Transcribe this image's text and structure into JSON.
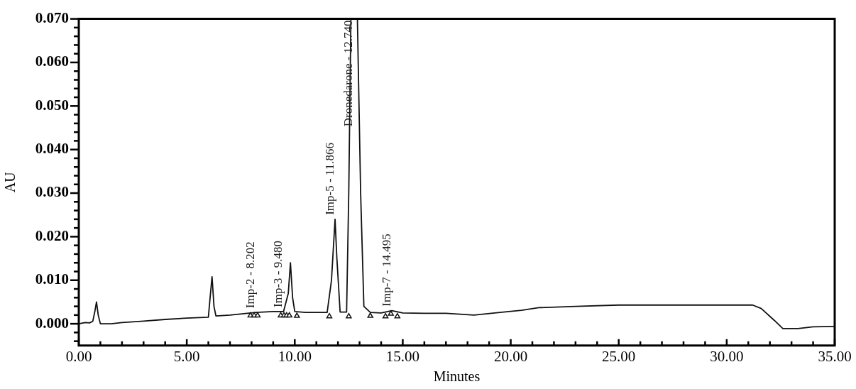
{
  "chart_data": {
    "type": "line",
    "xlabel": "Minutes",
    "ylabel": "AU",
    "xlim": [
      0,
      35
    ],
    "ylim": [
      -0.005,
      0.07
    ],
    "grid": false,
    "legend": false,
    "xticks": [
      {
        "value": 0,
        "label": "0.00"
      },
      {
        "value": 1,
        "label": null
      },
      {
        "value": 2,
        "label": null
      },
      {
        "value": 3,
        "label": null
      },
      {
        "value": 4,
        "label": null
      },
      {
        "value": 5,
        "label": "5.00"
      },
      {
        "value": 6,
        "label": null
      },
      {
        "value": 7,
        "label": null
      },
      {
        "value": 8,
        "label": null
      },
      {
        "value": 9,
        "label": null
      },
      {
        "value": 10,
        "label": "10.00"
      },
      {
        "value": 11,
        "label": null
      },
      {
        "value": 12,
        "label": null
      },
      {
        "value": 13,
        "label": null
      },
      {
        "value": 14,
        "label": null
      },
      {
        "value": 15,
        "label": "15.00"
      },
      {
        "value": 16,
        "label": null
      },
      {
        "value": 17,
        "label": null
      },
      {
        "value": 18,
        "label": null
      },
      {
        "value": 19,
        "label": null
      },
      {
        "value": 20,
        "label": "20.00"
      },
      {
        "value": 21,
        "label": null
      },
      {
        "value": 22,
        "label": null
      },
      {
        "value": 23,
        "label": null
      },
      {
        "value": 24,
        "label": null
      },
      {
        "value": 25,
        "label": "25.00"
      },
      {
        "value": 26,
        "label": null
      },
      {
        "value": 27,
        "label": null
      },
      {
        "value": 28,
        "label": null
      },
      {
        "value": 29,
        "label": null
      },
      {
        "value": 30,
        "label": "30.00"
      },
      {
        "value": 31,
        "label": null
      },
      {
        "value": 32,
        "label": null
      },
      {
        "value": 33,
        "label": null
      },
      {
        "value": 34,
        "label": null
      },
      {
        "value": 35,
        "label": "35.00"
      }
    ],
    "yticks": [
      {
        "value": -0.004,
        "label": null
      },
      {
        "value": -0.002,
        "label": null
      },
      {
        "value": 0,
        "label": "0.000"
      },
      {
        "value": 0.002,
        "label": null
      },
      {
        "value": 0.004,
        "label": null
      },
      {
        "value": 0.006,
        "label": null
      },
      {
        "value": 0.008,
        "label": null
      },
      {
        "value": 0.01,
        "label": "0.010"
      },
      {
        "value": 0.012,
        "label": null
      },
      {
        "value": 0.014,
        "label": null
      },
      {
        "value": 0.016,
        "label": null
      },
      {
        "value": 0.018,
        "label": null
      },
      {
        "value": 0.02,
        "label": "0.020"
      },
      {
        "value": 0.022,
        "label": null
      },
      {
        "value": 0.024,
        "label": null
      },
      {
        "value": 0.026,
        "label": null
      },
      {
        "value": 0.028,
        "label": null
      },
      {
        "value": 0.03,
        "label": "0.030"
      },
      {
        "value": 0.032,
        "label": null
      },
      {
        "value": 0.034,
        "label": null
      },
      {
        "value": 0.036,
        "label": null
      },
      {
        "value": 0.038,
        "label": null
      },
      {
        "value": 0.04,
        "label": "0.040"
      },
      {
        "value": 0.042,
        "label": null
      },
      {
        "value": 0.044,
        "label": null
      },
      {
        "value": 0.046,
        "label": null
      },
      {
        "value": 0.048,
        "label": null
      },
      {
        "value": 0.05,
        "label": "0.050"
      },
      {
        "value": 0.052,
        "label": null
      },
      {
        "value": 0.054,
        "label": null
      },
      {
        "value": 0.056,
        "label": null
      },
      {
        "value": 0.058,
        "label": null
      },
      {
        "value": 0.06,
        "label": "0.060"
      },
      {
        "value": 0.062,
        "label": null
      },
      {
        "value": 0.064,
        "label": null
      },
      {
        "value": 0.066,
        "label": null
      },
      {
        "value": 0.068,
        "label": null
      },
      {
        "value": 0.07,
        "label": "0.070"
      }
    ],
    "series": [
      {
        "color": "#111111",
        "marker": "none",
        "line_style": "solid",
        "x": [
          0,
          0.3,
          0.5,
          0.65,
          0.75,
          0.82,
          0.9,
          1.0,
          1.5,
          2.0,
          3.0,
          4.0,
          5.0,
          6.0,
          6.08,
          6.17,
          6.26,
          6.35,
          7.0,
          8.202,
          9.0,
          9.48,
          9.7,
          9.8,
          9.9,
          10.0,
          10.5,
          11.5,
          11.7,
          11.866,
          11.95,
          12.1,
          12.4,
          12.5,
          12.6,
          12.9,
          13.05,
          13.2,
          13.5,
          14.0,
          14.495,
          15,
          16,
          17,
          18.3,
          19.5,
          20.5,
          21.3,
          23,
          25,
          28,
          31.2,
          31.6,
          32.2,
          32.6,
          33.3,
          34,
          35
        ],
        "values": [
          0,
          0.0003,
          0.0002,
          0.0006,
          0.003,
          0.005,
          0.002,
          0,
          0,
          0.0003,
          0.0006,
          0.001,
          0.0013,
          0.0015,
          0.006,
          0.0108,
          0.004,
          0.0018,
          0.002,
          0.0026,
          0.0028,
          0.0028,
          0.007,
          0.014,
          0.006,
          0.0028,
          0.0026,
          0.0026,
          0.01,
          0.024,
          0.015,
          0.0027,
          0.0027,
          0.03,
          0.07,
          0.07,
          0.03,
          0.004,
          0.0026,
          0.0025,
          0.003,
          0.0025,
          0.0024,
          0.0024,
          0.002,
          0.0026,
          0.0031,
          0.0037,
          0.004,
          0.0043,
          0.0043,
          0.0043,
          0.0035,
          0.0008,
          -0.0011,
          -0.0011,
          -0.0007,
          -0.0006
        ]
      },
      {
        "type": "scatter",
        "color": "#111111",
        "marker": "triangle",
        "x": [
          7.95,
          8.12,
          8.28,
          9.35,
          9.5,
          9.62,
          9.75,
          10.1,
          11.6,
          12.5,
          13.5,
          14.2,
          14.45,
          14.75
        ],
        "values": [
          0.0019,
          0.0019,
          0.0019,
          0.0019,
          0.0019,
          0.0019,
          0.0019,
          0.0018,
          0.0017,
          0.0017,
          0.0018,
          0.0017,
          0.0023,
          0.0017
        ]
      }
    ],
    "annotations": [
      {
        "text": "Imp-2 - 8.202",
        "x": 8.202,
        "y": 0.0026
      },
      {
        "text": "Imp-3 - 9.480",
        "x": 9.48,
        "y": 0.0028
      },
      {
        "text": "Imp-5 - 11.866",
        "x": 11.866,
        "y": 0.024
      },
      {
        "text": "Dronedarone - 12.740",
        "x": 12.74,
        "y": 0.07
      },
      {
        "text": "Imp-7 - 14.495",
        "x": 14.495,
        "y": 0.003
      }
    ]
  }
}
